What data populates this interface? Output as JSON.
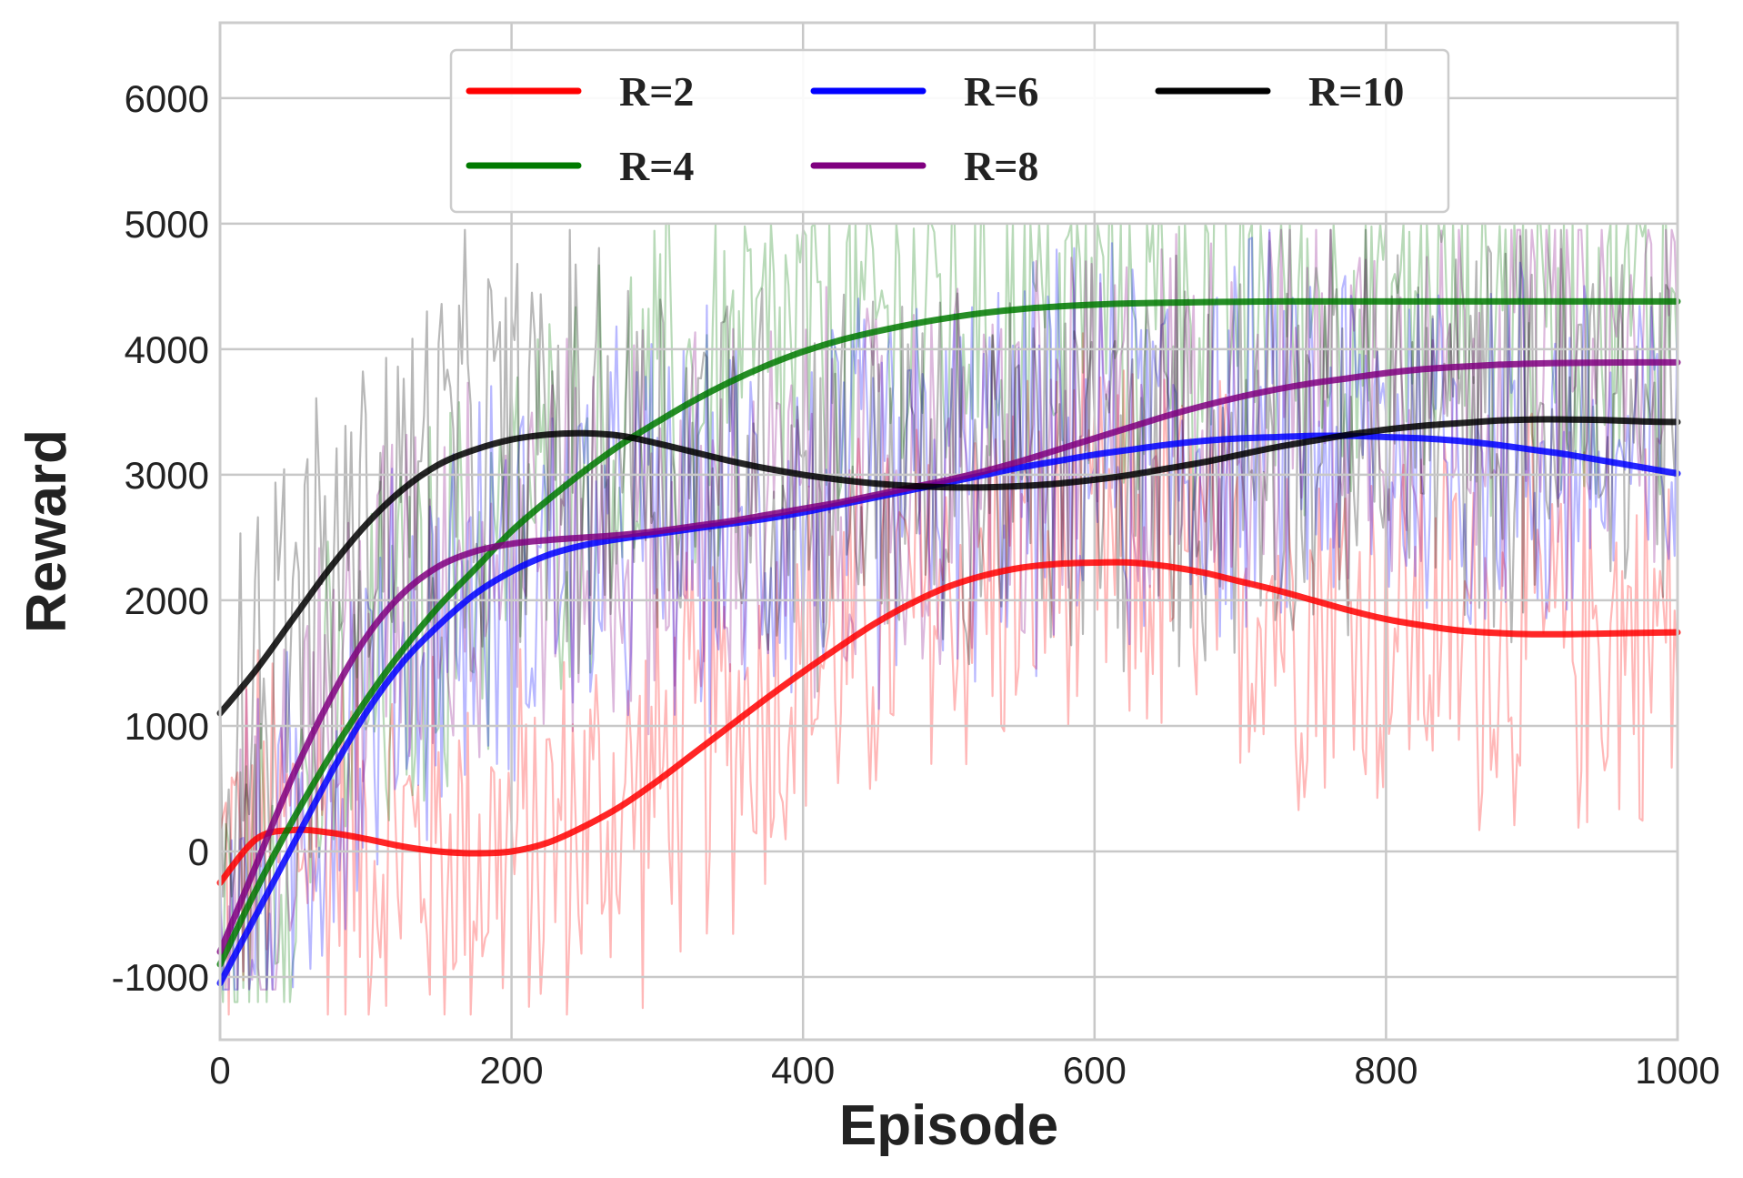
{
  "chart_data": {
    "type": "line",
    "title": "",
    "xlabel": "Episode",
    "ylabel": "Reward",
    "xlim": [
      0,
      1000
    ],
    "ylim": [
      -1500,
      6600
    ],
    "xticks": [
      0,
      200,
      400,
      600,
      800,
      1000
    ],
    "yticks": [
      -1000,
      0,
      1000,
      2000,
      3000,
      4000,
      5000,
      6000
    ],
    "xtick_labels": [
      "0",
      "200",
      "400",
      "600",
      "800",
      "1000"
    ],
    "ytick_labels": [
      "-1000",
      "0",
      "1000",
      "2000",
      "3000",
      "4000",
      "5000",
      "6000"
    ],
    "grid": true,
    "legend": {
      "position": "top-center",
      "columns": 3
    },
    "series": [
      {
        "name": "R=2",
        "color": "#ff0000",
        "smoothed": {
          "x": [
            0,
            25,
            50,
            75,
            100,
            125,
            150,
            175,
            200,
            225,
            250,
            275,
            300,
            325,
            350,
            375,
            400,
            425,
            450,
            475,
            500,
            525,
            550,
            575,
            600,
            625,
            650,
            675,
            700,
            725,
            750,
            775,
            800,
            825,
            850,
            875,
            900,
            925,
            950,
            975,
            1000
          ],
          "y": [
            -250,
            100,
            170,
            150,
            100,
            40,
            0,
            -15,
            0,
            70,
            200,
            360,
            560,
            780,
            1000,
            1220,
            1430,
            1630,
            1820,
            1980,
            2110,
            2200,
            2260,
            2290,
            2300,
            2300,
            2270,
            2220,
            2150,
            2080,
            2000,
            1920,
            1850,
            1800,
            1760,
            1740,
            1730,
            1730,
            1735,
            1740,
            1745
          ]
        },
        "raw_envelope": {
          "min": -1300,
          "max": 4850
        }
      },
      {
        "name": "R=4",
        "color": "#007a00",
        "smoothed": {
          "x": [
            0,
            25,
            50,
            75,
            100,
            125,
            150,
            175,
            200,
            225,
            250,
            275,
            300,
            325,
            350,
            375,
            400,
            425,
            450,
            475,
            500,
            525,
            550,
            575,
            600,
            625,
            650,
            675,
            700,
            725,
            750,
            775,
            800,
            825,
            850,
            875,
            900,
            925,
            950,
            975,
            1000
          ],
          "y": [
            -900,
            -300,
            250,
            750,
            1200,
            1600,
            1950,
            2250,
            2550,
            2800,
            3030,
            3240,
            3420,
            3590,
            3740,
            3870,
            3980,
            4070,
            4140,
            4200,
            4250,
            4290,
            4320,
            4340,
            4355,
            4365,
            4370,
            4375,
            4378,
            4380,
            4380,
            4380,
            4380,
            4380,
            4380,
            4380,
            4380,
            4380,
            4380,
            4380,
            4380
          ]
        },
        "raw_envelope": {
          "min": -1200,
          "max": 5000
        }
      },
      {
        "name": "R=6",
        "color": "#0000ff",
        "smoothed": {
          "x": [
            0,
            25,
            50,
            75,
            100,
            125,
            150,
            175,
            200,
            225,
            250,
            275,
            300,
            325,
            350,
            375,
            400,
            425,
            450,
            475,
            500,
            525,
            550,
            575,
            600,
            625,
            650,
            675,
            700,
            725,
            750,
            775,
            800,
            825,
            850,
            875,
            900,
            925,
            950,
            975,
            1000
          ],
          "y": [
            -1050,
            -500,
            50,
            600,
            1100,
            1500,
            1800,
            2050,
            2230,
            2360,
            2440,
            2490,
            2530,
            2570,
            2610,
            2650,
            2700,
            2760,
            2820,
            2880,
            2940,
            3000,
            3060,
            3110,
            3160,
            3200,
            3240,
            3270,
            3290,
            3300,
            3310,
            3310,
            3300,
            3290,
            3270,
            3240,
            3200,
            3160,
            3110,
            3060,
            3010
          ]
        },
        "raw_envelope": {
          "min": -1100,
          "max": 4950
        }
      },
      {
        "name": "R=8",
        "color": "#800080",
        "smoothed": {
          "x": [
            0,
            25,
            50,
            75,
            100,
            125,
            150,
            175,
            200,
            225,
            250,
            275,
            300,
            325,
            350,
            375,
            400,
            425,
            450,
            475,
            500,
            525,
            550,
            575,
            600,
            625,
            650,
            675,
            700,
            725,
            750,
            775,
            800,
            825,
            850,
            875,
            900,
            925,
            950,
            975,
            1000
          ],
          "y": [
            -800,
            -100,
            600,
            1200,
            1700,
            2050,
            2270,
            2390,
            2450,
            2480,
            2500,
            2520,
            2550,
            2590,
            2630,
            2680,
            2730,
            2780,
            2840,
            2900,
            2960,
            3030,
            3110,
            3200,
            3290,
            3380,
            3470,
            3550,
            3620,
            3680,
            3730,
            3770,
            3810,
            3840,
            3860,
            3875,
            3885,
            3890,
            3893,
            3895,
            3895
          ]
        },
        "raw_envelope": {
          "min": -1100,
          "max": 4950
        }
      },
      {
        "name": "R=10",
        "color": "#000000",
        "smoothed": {
          "x": [
            0,
            25,
            50,
            75,
            100,
            125,
            150,
            175,
            200,
            225,
            250,
            275,
            300,
            325,
            350,
            375,
            400,
            425,
            450,
            475,
            500,
            525,
            550,
            575,
            600,
            625,
            650,
            675,
            700,
            725,
            750,
            775,
            800,
            825,
            850,
            875,
            900,
            925,
            950,
            975,
            1000
          ],
          "y": [
            1100,
            1450,
            1850,
            2250,
            2600,
            2880,
            3080,
            3200,
            3280,
            3320,
            3330,
            3310,
            3250,
            3180,
            3110,
            3050,
            3000,
            2960,
            2930,
            2910,
            2900,
            2900,
            2910,
            2930,
            2960,
            3000,
            3050,
            3100,
            3160,
            3220,
            3270,
            3320,
            3360,
            3390,
            3410,
            3430,
            3440,
            3440,
            3435,
            3425,
            3420
          ]
        },
        "raw_envelope": {
          "min": -1000,
          "max": 4950
        }
      }
    ]
  }
}
